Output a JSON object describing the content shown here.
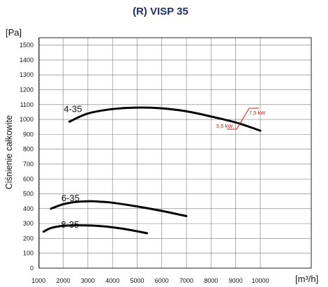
{
  "chart_data": {
    "type": "line",
    "title": "(R) VISP 35",
    "xlabel": "[m³/h]",
    "ylabel": "Ciśnienie całkowite",
    "yunit": "[Pa]",
    "xlim": [
      0,
      11000
    ],
    "ylim": [
      0,
      1550
    ],
    "x_ticks": [
      "1000",
      "2000",
      "3000",
      "4000",
      "5000",
      "6000",
      "7000",
      "8000",
      "9000",
      "10000"
    ],
    "y_ticks": [
      "0",
      "100",
      "200",
      "300",
      "400",
      "500",
      "600",
      "700",
      "800",
      "900",
      "1000",
      "1100",
      "1200",
      "1300",
      "1400",
      "1500"
    ],
    "grid": true,
    "series": [
      {
        "name": "4-35",
        "x": [
          2250,
          3000,
          4000,
          5000,
          6000,
          7000,
          8000,
          9000,
          10000
        ],
        "y": [
          985,
          1040,
          1070,
          1080,
          1075,
          1055,
          1020,
          980,
          925
        ]
      },
      {
        "name": "6-35",
        "x": [
          1500,
          2000,
          2500,
          3000,
          3500,
          4000,
          5000,
          6000,
          7000
        ],
        "y": [
          400,
          430,
          445,
          450,
          447,
          440,
          415,
          385,
          350
        ]
      },
      {
        "name": "8-35",
        "x": [
          1200,
          1500,
          2000,
          2500,
          3000,
          3500,
          4000,
          4500,
          5000,
          5400
        ],
        "y": [
          245,
          270,
          285,
          288,
          287,
          283,
          275,
          263,
          248,
          235
        ]
      }
    ],
    "annotations": [
      {
        "text": "7,5 kW",
        "x": 8500,
        "y": 1080
      },
      {
        "text": "5,5 kW",
        "x": 7700,
        "y": 940
      }
    ]
  }
}
